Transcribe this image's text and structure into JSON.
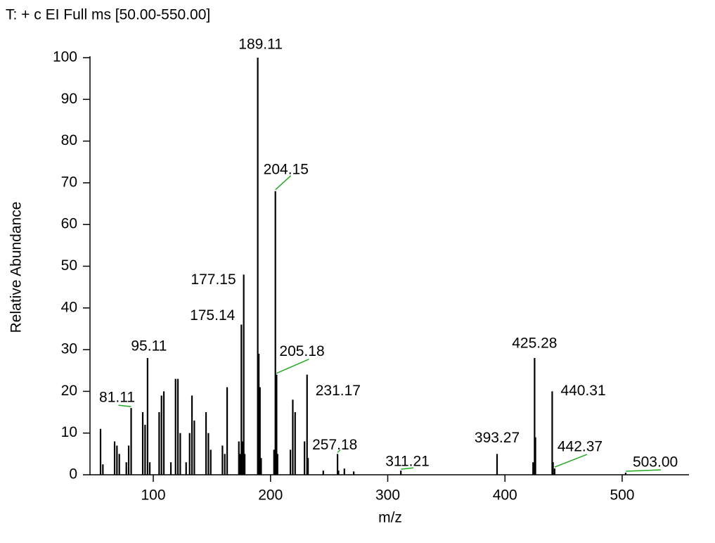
{
  "chart_data": {
    "type": "stick",
    "title": "T: + c EI Full ms [50.00-550.00]",
    "x_label": "m/z",
    "y_label": "Relative Abundance",
    "x": [
      55,
      57,
      67,
      69,
      71,
      77,
      79,
      81.11,
      91,
      93,
      95.11,
      97,
      105,
      107,
      109,
      115,
      119,
      121,
      123,
      128,
      131,
      133,
      135,
      145,
      147,
      149,
      159,
      161,
      163,
      173,
      174,
      175.14,
      176,
      177.15,
      178,
      189.11,
      190,
      191,
      192,
      203,
      204.15,
      205.18,
      206,
      217,
      219,
      221,
      229,
      231.17,
      232,
      245,
      257.18,
      258,
      263,
      271,
      311.21,
      393.27,
      424,
      425.28,
      426,
      440.31,
      441,
      442.37,
      503
    ],
    "values": [
      11,
      2.5,
      8,
      7,
      5,
      3,
      7,
      16,
      15,
      12,
      28,
      3,
      15,
      19,
      20,
      3,
      23,
      23,
      10,
      3,
      10,
      19,
      13,
      15,
      10,
      6,
      7,
      5,
      21,
      8,
      5,
      36,
      8,
      48,
      5,
      100,
      29,
      21,
      4,
      6,
      68,
      24,
      5,
      6,
      18,
      15,
      8,
      24,
      4,
      1,
      5,
      1,
      1.5,
      0.8,
      1,
      5,
      3,
      28,
      9,
      20,
      3,
      1.5,
      0.5
    ],
    "x_labels": [
      null,
      null,
      null,
      null,
      null,
      null,
      null,
      "81.11",
      null,
      null,
      "95.11",
      null,
      null,
      null,
      null,
      null,
      null,
      null,
      null,
      null,
      null,
      null,
      null,
      null,
      null,
      null,
      null,
      null,
      null,
      null,
      null,
      "175.14",
      null,
      "177.15",
      null,
      "189.11",
      null,
      null,
      null,
      null,
      "204.15",
      "205.18",
      null,
      null,
      null,
      null,
      null,
      "231.17",
      null,
      null,
      "257.18",
      null,
      null,
      null,
      "311.21",
      "393.27",
      null,
      "425.28",
      null,
      "440.31",
      null,
      "442.37",
      "503.00"
    ],
    "color": "#000000",
    "label_line_color": "#22aa22",
    "xlim": [
      46,
      557
    ],
    "ylim": [
      0,
      100
    ],
    "xticks": [
      100,
      200,
      300,
      400,
      500
    ],
    "yticks": [
      0,
      10,
      20,
      30,
      40,
      50,
      60,
      70,
      80,
      90,
      100
    ]
  }
}
